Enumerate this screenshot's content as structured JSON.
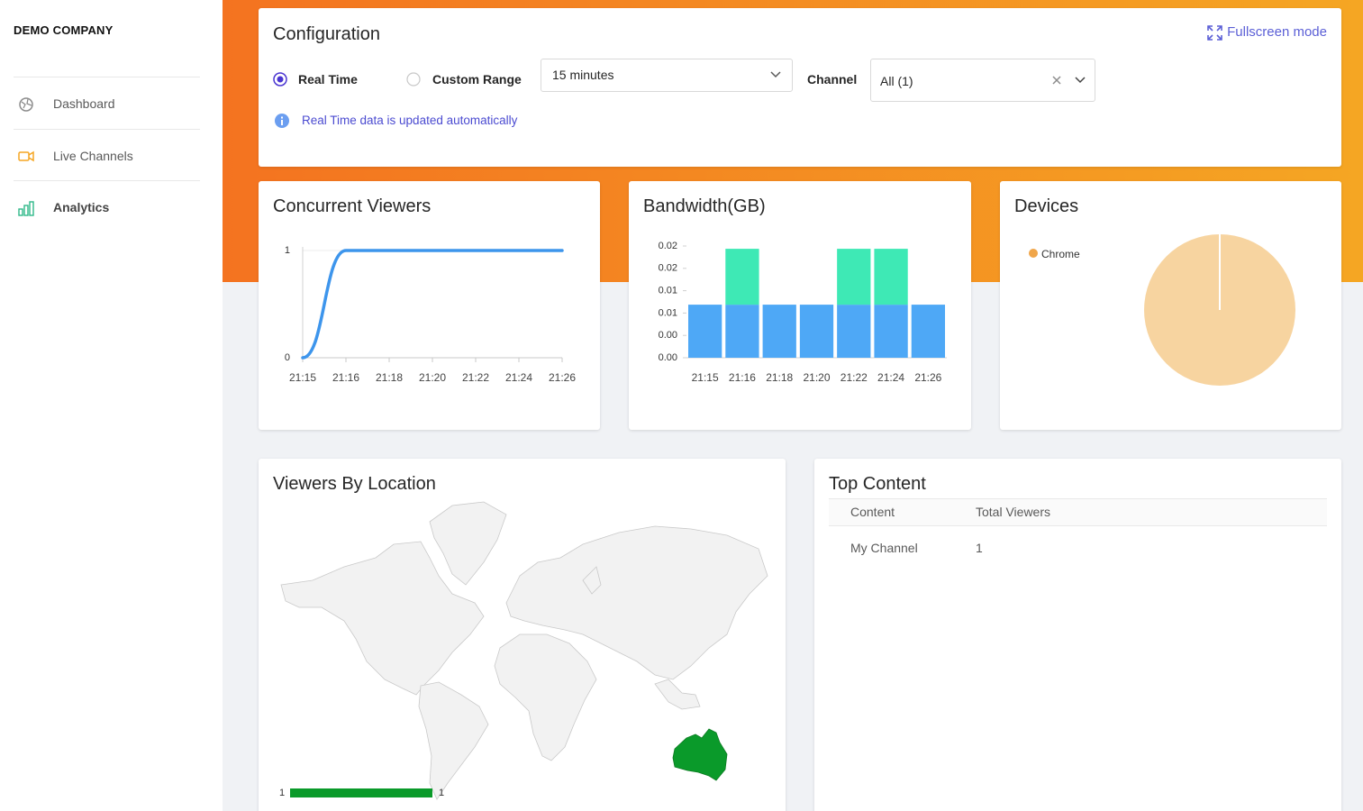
{
  "sidebar": {
    "company": "DEMO COMPANY",
    "nav": [
      "Dashboard",
      "Live Channels",
      "Analytics"
    ]
  },
  "config": {
    "title": "Configuration",
    "fullscreen": "Fullscreen mode",
    "radio_real_time": "Real Time",
    "radio_custom_range": "Custom Range",
    "range_select": "15 minutes",
    "channel_label": "Channel",
    "channel_select": "All (1)",
    "info": "Real Time data is updated automatically"
  },
  "chart_data": [
    {
      "type": "line",
      "title": "Concurrent Viewers",
      "categories": [
        "21:15",
        "21:16",
        "21:18",
        "21:20",
        "21:22",
        "21:24",
        "21:26"
      ],
      "values": [
        0,
        1,
        1,
        1,
        1,
        1,
        1
      ],
      "color": "#3d95ec",
      "ylim": [
        0,
        1
      ],
      "yticks": [
        0,
        1
      ],
      "grid": true
    },
    {
      "type": "stacked_bar",
      "title": "Bandwidth(GB)",
      "categories": [
        "21:15",
        "21:16",
        "21:18",
        "21:20",
        "21:22",
        "21:24",
        "21:26"
      ],
      "series": [
        {
          "color": "#4ea8f6",
          "values": [
            0.0095,
            0.0095,
            0.0095,
            0.0095,
            0.0095,
            0.0095,
            0.0095
          ]
        },
        {
          "color": "#3ee9b5",
          "values": [
            0,
            0.01,
            0,
            0,
            0.01,
            0.01,
            0
          ]
        }
      ],
      "ylim": [
        0,
        0.02
      ],
      "yticks": [
        {
          "value": 0,
          "label": "0.00"
        },
        {
          "value": 0.004,
          "label": "0.00"
        },
        {
          "value": 0.008,
          "label": "0.01"
        },
        {
          "value": 0.012,
          "label": "0.01"
        },
        {
          "value": 0.016,
          "label": "0.02"
        },
        {
          "value": 0.02,
          "label": "0.02"
        }
      ]
    },
    {
      "type": "pie",
      "title": "Devices",
      "labels": [
        "Chrome"
      ],
      "values": [
        1
      ],
      "colors": [
        "#f7d4a0"
      ],
      "legend_colors": [
        "#f0a64a"
      ]
    }
  ],
  "map": {
    "title": "Viewers By Location",
    "values": [
      1
    ],
    "color": "#0a9a2a",
    "scale_min": 1,
    "scale_max": 1
  },
  "top_content": {
    "title": "Top Content",
    "columns": [
      "Content",
      "Total Viewers"
    ],
    "rows": [
      [
        "My Channel",
        "1"
      ]
    ]
  }
}
